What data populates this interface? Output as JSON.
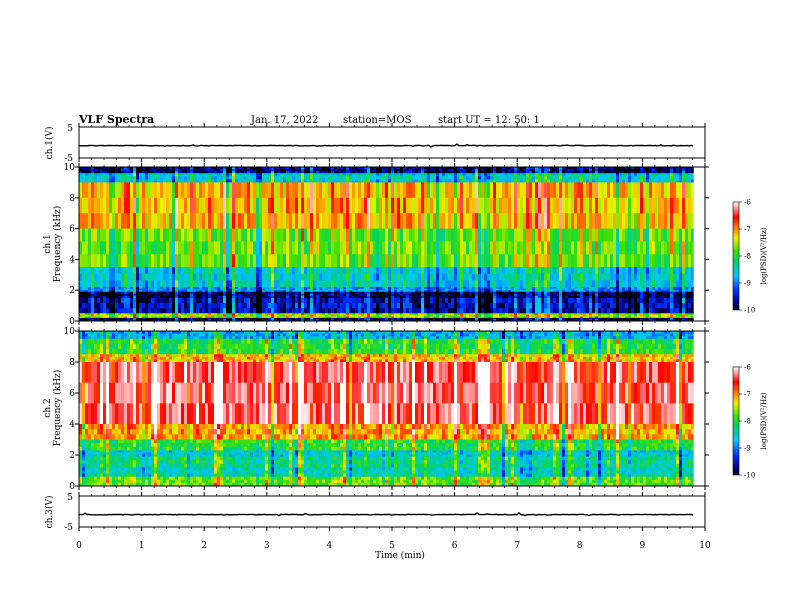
{
  "header": {
    "title": "VLF Spectra",
    "date": "Jan. 17, 2022",
    "station": "station=MOS",
    "start": "start  UT =   12: 50: 1"
  },
  "chart_data": [
    {
      "type": "line",
      "panel": "ch1-waveform",
      "ylabel": "ch.1(V)",
      "ylim": [
        -5,
        5
      ],
      "yticks": [
        "5",
        "-5"
      ],
      "series": [
        {
          "values_description_level": -1
        }
      ]
    },
    {
      "type": "heatmap",
      "panel": "ch1-spectrogram",
      "ylabel": "ch.1\nFrequency (kHz)",
      "ylabel_lines": [
        "ch.1",
        "Frequency (kHz)"
      ],
      "ylim": [
        0,
        10
      ],
      "yticks": [
        "0",
        "2",
        "4",
        "6",
        "8",
        "10"
      ],
      "colorbar": {
        "label": "log(PSD)(V²/Hz)",
        "range": [
          -10,
          -6
        ],
        "ticks": [
          "-6",
          "-7",
          "-8",
          "-9",
          "-10"
        ]
      },
      "bands": [
        {
          "from": 9.6,
          "to": 10.0,
          "level": -9.8
        },
        {
          "from": 9.0,
          "to": 9.6,
          "level": -8.6
        },
        {
          "from": 6.0,
          "to": 9.0,
          "level": -7.2
        },
        {
          "from": 3.5,
          "to": 6.0,
          "level": -7.8
        },
        {
          "from": 2.2,
          "to": 3.5,
          "level": -8.6
        },
        {
          "from": 1.9,
          "to": 2.2,
          "level": -9.0
        },
        {
          "from": 1.5,
          "to": 1.9,
          "level": -9.9
        },
        {
          "from": 0.5,
          "to": 1.5,
          "level": -9.6
        },
        {
          "from": 0.2,
          "to": 0.5,
          "level": -7.6
        },
        {
          "from": 0.0,
          "to": 0.2,
          "level": -9.9
        }
      ]
    },
    {
      "type": "heatmap",
      "panel": "ch2-spectrogram",
      "ylabel_lines": [
        "ch.2",
        "Frequency (kHz)"
      ],
      "ylim": [
        0,
        10
      ],
      "yticks": [
        "0",
        "2",
        "4",
        "6",
        "8",
        "10"
      ],
      "colorbar": {
        "label": "log(PSD)(V²/Hz)",
        "range": [
          -10,
          -6
        ],
        "ticks": [
          "-6",
          "-7",
          "-8",
          "-9",
          "-10"
        ]
      },
      "bands": [
        {
          "from": 9.5,
          "to": 10.0,
          "level": -8.8
        },
        {
          "from": 8.5,
          "to": 9.5,
          "level": -8.0
        },
        {
          "from": 8.0,
          "to": 8.5,
          "level": -7.2
        },
        {
          "from": 4.0,
          "to": 8.0,
          "level": -6.4
        },
        {
          "from": 3.0,
          "to": 4.0,
          "level": -7.1
        },
        {
          "from": 2.3,
          "to": 3.0,
          "level": -8.0
        },
        {
          "from": 1.9,
          "to": 2.3,
          "level": -8.6
        },
        {
          "from": 1.2,
          "to": 1.9,
          "level": -8.3
        },
        {
          "from": 0.6,
          "to": 1.2,
          "level": -8.5
        },
        {
          "from": 0.0,
          "to": 0.6,
          "level": -7.8
        }
      ]
    },
    {
      "type": "line",
      "panel": "ch3-waveform",
      "ylabel": "ch.3(V)",
      "ylim": [
        -5,
        5
      ],
      "yticks": [
        "5",
        "-5"
      ],
      "series": [
        {
          "values_description_level": -1
        }
      ]
    }
  ],
  "xaxis": {
    "label": "Time (min)",
    "range": [
      0,
      10
    ],
    "ticks": [
      "0",
      "1",
      "2",
      "3",
      "4",
      "5",
      "6",
      "7",
      "8",
      "9",
      "10"
    ],
    "data_end": 9.82
  }
}
